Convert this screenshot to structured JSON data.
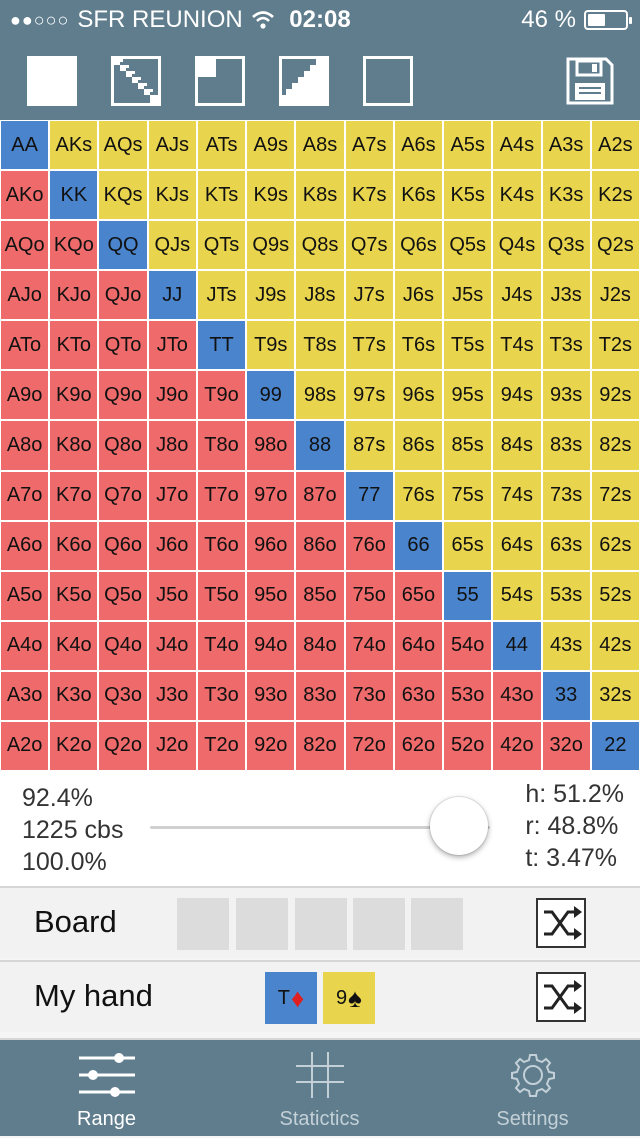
{
  "status": {
    "carrier": "SFR REUNION",
    "time": "02:08",
    "battery": "46 %",
    "battery_level": 0.46
  },
  "toolbar": {
    "tools": [
      {
        "name": "select-all-tool",
        "icon": "filled-square-icon"
      },
      {
        "name": "diagonal-tool",
        "icon": "diagonal-pattern-icon"
      },
      {
        "name": "corner-tool",
        "icon": "corner-square-icon"
      },
      {
        "name": "staircase-tool",
        "icon": "staircase-icon"
      },
      {
        "name": "clear-tool",
        "icon": "empty-square-icon"
      }
    ],
    "save_icon": "floppy-disk-icon"
  },
  "colors": {
    "pair": "#4a84cc",
    "suited": "#e8d54d",
    "offsuit": "#ef6b6b",
    "bar": "#5f7d8d"
  },
  "grid": [
    [
      "AA",
      "AKs",
      "AQs",
      "AJs",
      "ATs",
      "A9s",
      "A8s",
      "A7s",
      "A6s",
      "A5s",
      "A4s",
      "A3s",
      "A2s"
    ],
    [
      "AKo",
      "KK",
      "KQs",
      "KJs",
      "KTs",
      "K9s",
      "K8s",
      "K7s",
      "K6s",
      "K5s",
      "K4s",
      "K3s",
      "K2s"
    ],
    [
      "AQo",
      "KQo",
      "QQ",
      "QJs",
      "QTs",
      "Q9s",
      "Q8s",
      "Q7s",
      "Q6s",
      "Q5s",
      "Q4s",
      "Q3s",
      "Q2s"
    ],
    [
      "AJo",
      "KJo",
      "QJo",
      "JJ",
      "JTs",
      "J9s",
      "J8s",
      "J7s",
      "J6s",
      "J5s",
      "J4s",
      "J3s",
      "J2s"
    ],
    [
      "ATo",
      "KTo",
      "QTo",
      "JTo",
      "TT",
      "T9s",
      "T8s",
      "T7s",
      "T6s",
      "T5s",
      "T4s",
      "T3s",
      "T2s"
    ],
    [
      "A9o",
      "K9o",
      "Q9o",
      "J9o",
      "T9o",
      "99",
      "98s",
      "97s",
      "96s",
      "95s",
      "94s",
      "93s",
      "92s"
    ],
    [
      "A8o",
      "K8o",
      "Q8o",
      "J8o",
      "T8o",
      "98o",
      "88",
      "87s",
      "86s",
      "85s",
      "84s",
      "83s",
      "82s"
    ],
    [
      "A7o",
      "K7o",
      "Q7o",
      "J7o",
      "T7o",
      "97o",
      "87o",
      "77",
      "76s",
      "75s",
      "74s",
      "73s",
      "72s"
    ],
    [
      "A6o",
      "K6o",
      "Q6o",
      "J6o",
      "T6o",
      "96o",
      "86o",
      "76o",
      "66",
      "65s",
      "64s",
      "63s",
      "62s"
    ],
    [
      "A5o",
      "K5o",
      "Q5o",
      "J5o",
      "T5o",
      "95o",
      "85o",
      "75o",
      "65o",
      "55",
      "54s",
      "53s",
      "52s"
    ],
    [
      "A4o",
      "K4o",
      "Q4o",
      "J4o",
      "T4o",
      "94o",
      "84o",
      "74o",
      "64o",
      "54o",
      "44",
      "43s",
      "42s"
    ],
    [
      "A3o",
      "K3o",
      "Q3o",
      "J3o",
      "T3o",
      "93o",
      "83o",
      "73o",
      "63o",
      "53o",
      "43o",
      "33",
      "32s"
    ],
    [
      "A2o",
      "K2o",
      "Q2o",
      "J2o",
      "T2o",
      "92o",
      "82o",
      "72o",
      "62o",
      "52o",
      "42o",
      "32o",
      "22"
    ]
  ],
  "stats": {
    "range_pct": "92.4%",
    "combos": "1225 cbs",
    "slider_pct": "100.0%",
    "slider_value": 1.0,
    "h": "h: 51.2%",
    "r": "r: 48.8%",
    "t": "t: 3.47%"
  },
  "board": {
    "label": "Board",
    "slots": 5,
    "shuffle_icon": "shuffle-icon"
  },
  "hand": {
    "label": "My hand",
    "cards": [
      {
        "rank": "T",
        "suit": "♦",
        "suit_name": "diamond-icon",
        "bg": "#4a84cc",
        "suit_color": "#e02020"
      },
      {
        "rank": "9",
        "suit": "♠",
        "suit_name": "spade-icon",
        "bg": "#e8d54d",
        "suit_color": "#111111"
      }
    ],
    "shuffle_icon": "shuffle-icon"
  },
  "tabs": [
    {
      "label": "Range",
      "icon": "sliders-icon",
      "active": true
    },
    {
      "label": "Statictics",
      "icon": "hash-icon",
      "active": false
    },
    {
      "label": "Settings",
      "icon": "gear-icon",
      "active": false
    }
  ]
}
